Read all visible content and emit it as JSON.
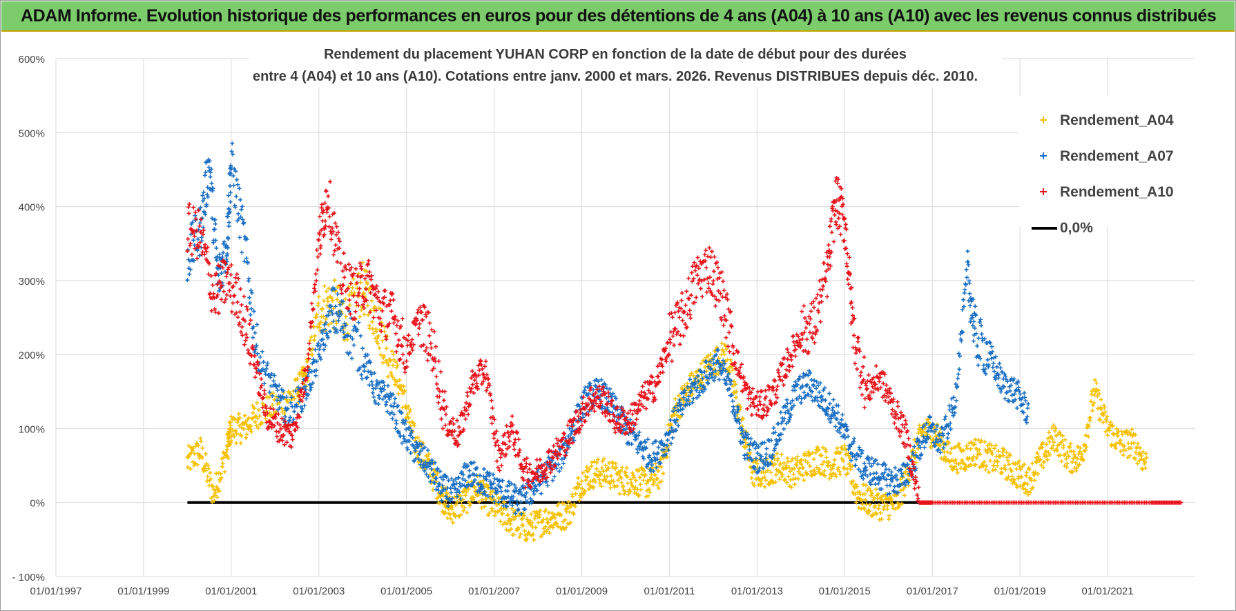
{
  "banner": {
    "text": "ADAM Informe. Evolution historique des performances en euros pour des détentions de 4 ans (A04) à 10 ans (A10) avec les revenus connus distribués"
  },
  "chart_data": {
    "type": "scatter",
    "title_line1": "Rendement du placement YUHAN CORP en fonction de la date de début pour des durées",
    "title_line2": "entre 4 (A04) et 10 ans (A10).  Cotations entre janv. 2000 et mars. 2026. Revenus DISTRIBUES depuis déc. 2010.",
    "xlabel": "",
    "ylabel": "",
    "x_ticks": [
      "01/01/1997",
      "01/01/1999",
      "01/01/2001",
      "01/01/2003",
      "01/01/2005",
      "01/01/2007",
      "01/01/2009",
      "01/01/2011",
      "01/01/2013",
      "01/01/2015",
      "01/01/2017",
      "01/01/2019",
      "01/01/2021"
    ],
    "x_range": [
      1997.0,
      2023.0
    ],
    "y_ticks": [
      "600%",
      "500%",
      "400%",
      "300%",
      "200%",
      "100%",
      "0%",
      "- 100%"
    ],
    "y_tick_values": [
      600,
      500,
      400,
      300,
      200,
      100,
      0,
      -100
    ],
    "ylim": [
      -100,
      600
    ],
    "grid": true,
    "legend_position": "top-right",
    "colors": {
      "a04": "#f5c000",
      "a07": "#1a6fc4",
      "a10": "#e8121a",
      "zero": "#000000",
      "grid": "#d9d9d9"
    },
    "series": [
      {
        "name": "Rendement_A04",
        "color": "#f5c000",
        "points": [
          [
            2000.0,
            55
          ],
          [
            2000.3,
            70
          ],
          [
            2000.6,
            10
          ],
          [
            2000.9,
            70
          ],
          [
            2001.0,
            100
          ],
          [
            2001.3,
            100
          ],
          [
            2001.6,
            120
          ],
          [
            2002.0,
            130
          ],
          [
            2002.5,
            150
          ],
          [
            2002.7,
            170
          ],
          [
            2003.0,
            260
          ],
          [
            2003.3,
            270
          ],
          [
            2003.6,
            250
          ],
          [
            2004.0,
            290
          ],
          [
            2004.3,
            250
          ],
          [
            2004.6,
            200
          ],
          [
            2004.9,
            150
          ],
          [
            2005.2,
            80
          ],
          [
            2005.5,
            50
          ],
          [
            2005.8,
            10
          ],
          [
            2006.0,
            -10
          ],
          [
            2006.3,
            0
          ],
          [
            2006.6,
            20
          ],
          [
            2006.9,
            0
          ],
          [
            2007.2,
            -15
          ],
          [
            2007.5,
            -30
          ],
          [
            2007.8,
            -35
          ],
          [
            2008.1,
            -25
          ],
          [
            2008.4,
            -20
          ],
          [
            2008.7,
            -15
          ],
          [
            2009.0,
            30
          ],
          [
            2009.3,
            40
          ],
          [
            2009.6,
            40
          ],
          [
            2009.9,
            30
          ],
          [
            2010.2,
            30
          ],
          [
            2010.5,
            25
          ],
          [
            2010.8,
            40
          ],
          [
            2011.1,
            120
          ],
          [
            2011.4,
            150
          ],
          [
            2011.7,
            170
          ],
          [
            2012.0,
            190
          ],
          [
            2012.3,
            200
          ],
          [
            2012.6,
            120
          ],
          [
            2012.9,
            40
          ],
          [
            2013.2,
            40
          ],
          [
            2013.5,
            50
          ],
          [
            2013.8,
            40
          ],
          [
            2014.1,
            50
          ],
          [
            2014.4,
            60
          ],
          [
            2014.7,
            50
          ],
          [
            2015.0,
            60
          ],
          [
            2015.3,
            10
          ],
          [
            2015.6,
            0
          ],
          [
            2015.9,
            -5
          ],
          [
            2016.2,
            0
          ],
          [
            2016.5,
            50
          ],
          [
            2016.8,
            100
          ],
          [
            2017.1,
            90
          ],
          [
            2017.4,
            60
          ],
          [
            2017.7,
            60
          ],
          [
            2018.0,
            70
          ],
          [
            2018.3,
            60
          ],
          [
            2018.6,
            55
          ],
          [
            2018.9,
            40
          ],
          [
            2019.2,
            30
          ],
          [
            2019.5,
            60
          ],
          [
            2019.8,
            90
          ],
          [
            2020.1,
            60
          ],
          [
            2020.4,
            60
          ],
          [
            2020.7,
            150
          ],
          [
            2021.0,
            100
          ],
          [
            2021.3,
            80
          ],
          [
            2021.6,
            80
          ],
          [
            2021.9,
            50
          ]
        ]
      },
      {
        "name": "Rendement_A07",
        "color": "#1a6fc4",
        "points": [
          [
            2000.0,
            330
          ],
          [
            2000.3,
            370
          ],
          [
            2000.5,
            460
          ],
          [
            2000.7,
            300
          ],
          [
            2000.9,
            350
          ],
          [
            2001.0,
            460
          ],
          [
            2001.3,
            350
          ],
          [
            2001.6,
            200
          ],
          [
            2002.0,
            150
          ],
          [
            2002.3,
            120
          ],
          [
            2002.7,
            150
          ],
          [
            2003.0,
            200
          ],
          [
            2003.3,
            260
          ],
          [
            2003.6,
            240
          ],
          [
            2004.0,
            200
          ],
          [
            2004.3,
            150
          ],
          [
            2004.6,
            140
          ],
          [
            2004.9,
            100
          ],
          [
            2005.2,
            70
          ],
          [
            2005.5,
            50
          ],
          [
            2005.8,
            20
          ],
          [
            2006.1,
            10
          ],
          [
            2006.4,
            40
          ],
          [
            2006.7,
            30
          ],
          [
            2007.0,
            20
          ],
          [
            2007.3,
            10
          ],
          [
            2007.6,
            0
          ],
          [
            2007.9,
            20
          ],
          [
            2008.2,
            40
          ],
          [
            2008.5,
            60
          ],
          [
            2008.8,
            100
          ],
          [
            2009.1,
            140
          ],
          [
            2009.4,
            150
          ],
          [
            2009.7,
            130
          ],
          [
            2010.0,
            100
          ],
          [
            2010.3,
            80
          ],
          [
            2010.6,
            60
          ],
          [
            2010.9,
            80
          ],
          [
            2011.2,
            120
          ],
          [
            2011.5,
            150
          ],
          [
            2011.8,
            170
          ],
          [
            2012.1,
            190
          ],
          [
            2012.4,
            150
          ],
          [
            2012.7,
            80
          ],
          [
            2013.0,
            60
          ],
          [
            2013.3,
            70
          ],
          [
            2013.6,
            110
          ],
          [
            2013.9,
            150
          ],
          [
            2014.2,
            160
          ],
          [
            2014.5,
            140
          ],
          [
            2014.8,
            120
          ],
          [
            2015.1,
            80
          ],
          [
            2015.4,
            50
          ],
          [
            2015.7,
            40
          ],
          [
            2016.0,
            30
          ],
          [
            2016.3,
            30
          ],
          [
            2016.6,
            60
          ],
          [
            2016.9,
            100
          ],
          [
            2017.2,
            80
          ],
          [
            2017.5,
            130
          ],
          [
            2017.8,
            310
          ],
          [
            2018.0,
            220
          ],
          [
            2018.3,
            200
          ],
          [
            2018.6,
            160
          ],
          [
            2018.9,
            150
          ],
          [
            2019.2,
            120
          ]
        ]
      },
      {
        "name": "Rendement_A10",
        "color": "#e8121a",
        "points": [
          [
            2000.0,
            370
          ],
          [
            2000.3,
            360
          ],
          [
            2000.6,
            280
          ],
          [
            2000.9,
            300
          ],
          [
            2001.2,
            270
          ],
          [
            2001.5,
            200
          ],
          [
            2001.8,
            120
          ],
          [
            2002.1,
            100
          ],
          [
            2002.4,
            90
          ],
          [
            2002.7,
            170
          ],
          [
            2003.0,
            350
          ],
          [
            2003.2,
            420
          ],
          [
            2003.5,
            310
          ],
          [
            2003.8,
            280
          ],
          [
            2004.1,
            300
          ],
          [
            2004.4,
            260
          ],
          [
            2004.7,
            250
          ],
          [
            2005.0,
            200
          ],
          [
            2005.3,
            250
          ],
          [
            2005.6,
            210
          ],
          [
            2005.9,
            110
          ],
          [
            2006.2,
            90
          ],
          [
            2006.5,
            160
          ],
          [
            2006.8,
            180
          ],
          [
            2007.1,
            60
          ],
          [
            2007.4,
            100
          ],
          [
            2007.7,
            40
          ],
          [
            2008.0,
            40
          ],
          [
            2008.3,
            60
          ],
          [
            2008.6,
            80
          ],
          [
            2008.9,
            110
          ],
          [
            2009.2,
            140
          ],
          [
            2009.5,
            140
          ],
          [
            2009.8,
            110
          ],
          [
            2010.1,
            110
          ],
          [
            2010.4,
            140
          ],
          [
            2010.7,
            160
          ],
          [
            2011.0,
            220
          ],
          [
            2011.3,
            250
          ],
          [
            2011.6,
            300
          ],
          [
            2011.9,
            320
          ],
          [
            2012.2,
            280
          ],
          [
            2012.5,
            200
          ],
          [
            2012.8,
            140
          ],
          [
            2013.1,
            130
          ],
          [
            2013.4,
            150
          ],
          [
            2013.7,
            190
          ],
          [
            2014.0,
            230
          ],
          [
            2014.3,
            240
          ],
          [
            2014.6,
            310
          ],
          [
            2014.8,
            410
          ],
          [
            2015.0,
            380
          ],
          [
            2015.2,
            230
          ],
          [
            2015.5,
            150
          ],
          [
            2015.8,
            170
          ],
          [
            2016.1,
            130
          ],
          [
            2016.4,
            90
          ],
          [
            2016.7,
            0
          ],
          [
            2017.0,
            0
          ],
          [
            2018.0,
            0
          ],
          [
            2019.0,
            0
          ],
          [
            2020.0,
            0
          ],
          [
            2021.0,
            0
          ],
          [
            2022.0,
            0
          ],
          [
            2022.7,
            0
          ]
        ]
      },
      {
        "name": "0,0%",
        "color": "#000000",
        "type": "line",
        "points": [
          [
            2000.0,
            0
          ],
          [
            2016.7,
            0
          ]
        ]
      }
    ]
  }
}
